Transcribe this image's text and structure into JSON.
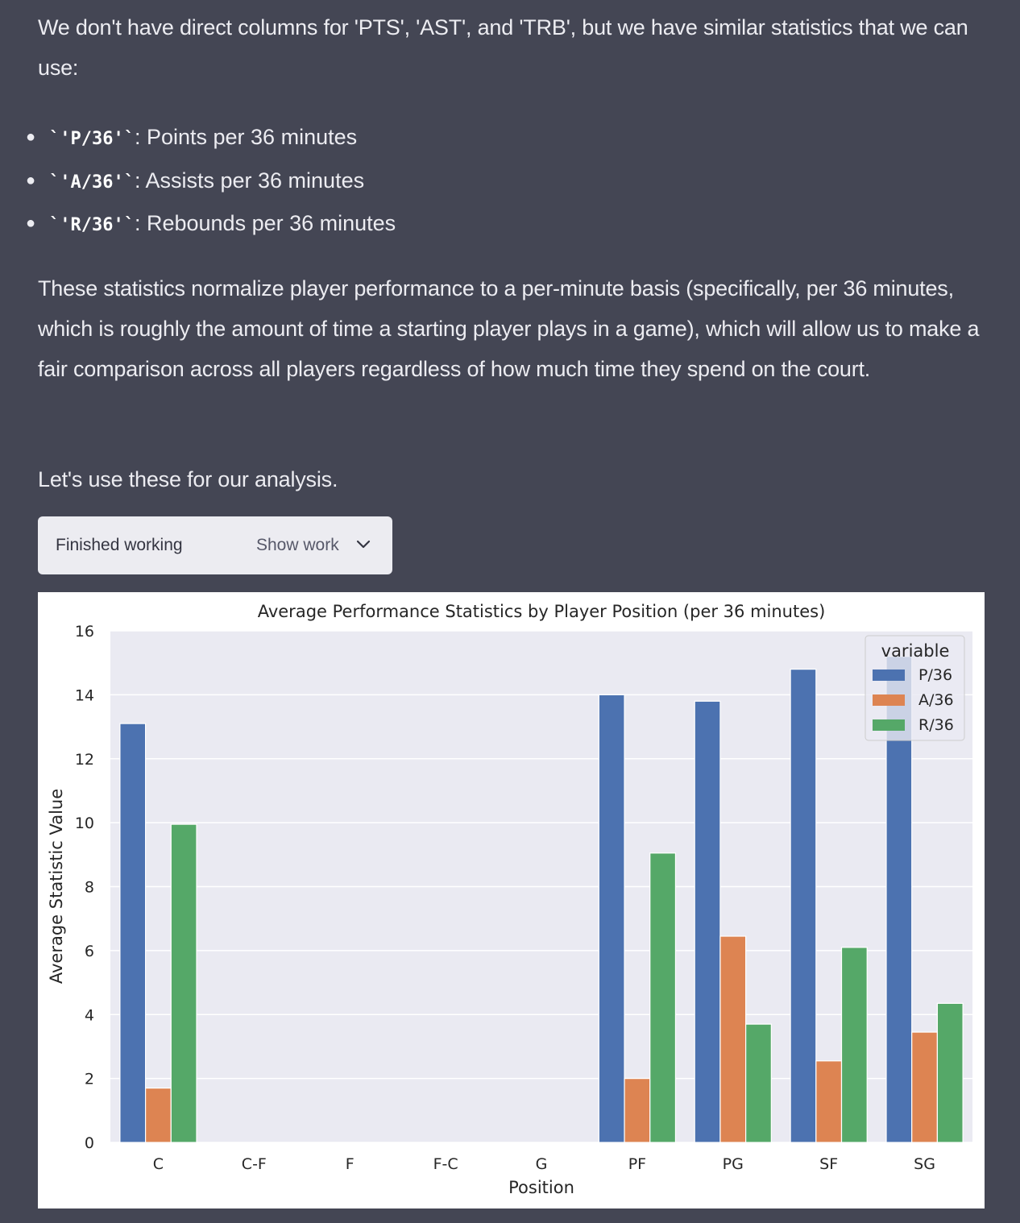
{
  "message": {
    "intro": "We don't have direct columns for 'PTS', 'AST', and 'TRB', but we have similar statistics that we can use:",
    "bullets": [
      {
        "code": "`'P/36'`",
        "text": ": Points per 36 minutes"
      },
      {
        "code": "`'A/36'`",
        "text": ": Assists per 36 minutes"
      },
      {
        "code": "`'R/36'`",
        "text": ": Rebounds per 36 minutes"
      }
    ],
    "explanation": "These statistics normalize player performance to a per-minute basis (specifically, per 36 minutes, which is roughly the amount of time a starting player plays in a game), which will allow us to make a fair comparison across all players regardless of how much time they spend on the court.",
    "closing": "Let's use these for our analysis."
  },
  "work_panel": {
    "status": "Finished working",
    "toggle_label": "Show work",
    "toggle_icon": "chevron-down-icon"
  },
  "chart_data": {
    "type": "bar",
    "title": "Average Performance Statistics by Player Position (per 36 minutes)",
    "xlabel": "Position",
    "ylabel": "Average Statistic Value",
    "categories": [
      "C",
      "C-F",
      "F",
      "F-C",
      "G",
      "PF",
      "PG",
      "SF",
      "SG"
    ],
    "ylim": [
      0,
      16
    ],
    "yticks": [
      0,
      2,
      4,
      6,
      8,
      10,
      12,
      14,
      16
    ],
    "grid": true,
    "legend": {
      "title": "variable",
      "placement": "top-right"
    },
    "series": [
      {
        "name": "P/36",
        "color": "#4c72b0",
        "values": [
          13.1,
          null,
          null,
          null,
          null,
          14.0,
          13.8,
          14.8,
          15.2
        ]
      },
      {
        "name": "A/36",
        "color": "#dd8452",
        "values": [
          1.7,
          null,
          null,
          null,
          null,
          2.0,
          6.45,
          2.55,
          3.45
        ]
      },
      {
        "name": "R/36",
        "color": "#55a868",
        "values": [
          9.95,
          null,
          null,
          null,
          null,
          9.05,
          3.7,
          6.1,
          4.35
        ]
      }
    ]
  }
}
